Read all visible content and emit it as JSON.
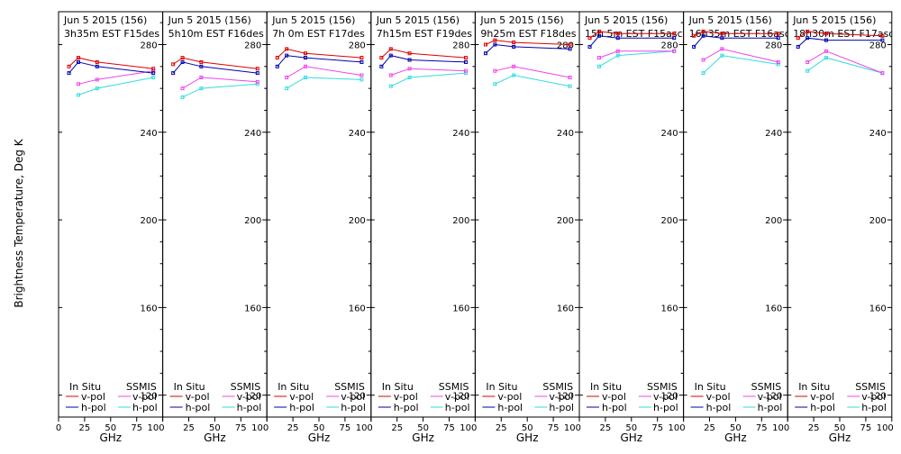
{
  "chart_data": {
    "type": "line",
    "ylabel": "Brightness Temperature, Deg K",
    "xlabel": "GHz",
    "ylim": [
      110,
      295
    ],
    "yticks": [
      120,
      160,
      200,
      240,
      280
    ],
    "xlim": [
      0,
      100
    ],
    "xticks": [
      0,
      25,
      50,
      75,
      100
    ],
    "xtick_labels_panel": [
      "25",
      "50",
      "75",
      "100"
    ],
    "xtick_labels_first": [
      "0",
      "25",
      "50",
      "75",
      "100"
    ],
    "legend": {
      "insitu_header": "In Situ",
      "ssmis_header": "SSMIS",
      "vpol": "v-pol",
      "hpol": "h-pol"
    },
    "colors": {
      "insitu_v": "#dd0000",
      "insitu_h": "#0000aa",
      "ssmis_v": "#ee44ee",
      "ssmis_h": "#33dddd"
    },
    "panels": [
      {
        "title1": "Jun 5 2015 (156)",
        "title2": "3h35m EST F15des",
        "insitu_v": {
          "x": [
            10,
            19,
            37,
            91
          ],
          "y": [
            270,
            274,
            272,
            269
          ]
        },
        "insitu_h": {
          "x": [
            10,
            19,
            37,
            91
          ],
          "y": [
            267,
            272,
            270,
            267
          ]
        },
        "ssmis_v": {
          "x": [
            19,
            37,
            91
          ],
          "y": [
            262,
            264,
            268
          ]
        },
        "ssmis_h": {
          "x": [
            19,
            37,
            91
          ],
          "y": [
            257,
            260,
            265
          ]
        }
      },
      {
        "title1": "Jun 5 2015 (156)",
        "title2": "5h10m EST F16des",
        "insitu_v": {
          "x": [
            10,
            19,
            37,
            91
          ],
          "y": [
            271,
            274,
            272,
            269
          ]
        },
        "insitu_h": {
          "x": [
            10,
            19,
            37,
            91
          ],
          "y": [
            267,
            272,
            270,
            267
          ]
        },
        "ssmis_v": {
          "x": [
            19,
            37,
            91
          ],
          "y": [
            260,
            265,
            263
          ]
        },
        "ssmis_h": {
          "x": [
            19,
            37,
            91
          ],
          "y": [
            256,
            260,
            262
          ]
        }
      },
      {
        "title1": "Jun 5 2015 (156)",
        "title2": "7h 0m EST F17des",
        "insitu_v": {
          "x": [
            10,
            19,
            37,
            91
          ],
          "y": [
            274,
            278,
            276,
            274
          ]
        },
        "insitu_h": {
          "x": [
            10,
            19,
            37,
            91
          ],
          "y": [
            270,
            275,
            274,
            272
          ]
        },
        "ssmis_v": {
          "x": [
            19,
            37,
            91
          ],
          "y": [
            265,
            270,
            266
          ]
        },
        "ssmis_h": {
          "x": [
            19,
            37,
            91
          ],
          "y": [
            260,
            265,
            264
          ]
        }
      },
      {
        "title1": "Jun 5 2015 (156)",
        "title2": "7h15m EST F19des",
        "insitu_v": {
          "x": [
            10,
            19,
            37,
            91
          ],
          "y": [
            274,
            278,
            276,
            274
          ]
        },
        "insitu_h": {
          "x": [
            10,
            19,
            37,
            91
          ],
          "y": [
            270,
            275,
            273,
            272
          ]
        },
        "ssmis_v": {
          "x": [
            19,
            37,
            91
          ],
          "y": [
            266,
            269,
            268
          ]
        },
        "ssmis_h": {
          "x": [
            19,
            37,
            91
          ],
          "y": [
            261,
            265,
            267
          ]
        }
      },
      {
        "title1": "Jun 5 2015 (156)",
        "title2": "9h25m EST F18des",
        "insitu_v": {
          "x": [
            10,
            19,
            37,
            91
          ],
          "y": [
            280,
            282,
            281,
            280
          ]
        },
        "insitu_h": {
          "x": [
            10,
            19,
            37,
            91
          ],
          "y": [
            276,
            280,
            279,
            278
          ]
        },
        "ssmis_v": {
          "x": [
            19,
            37,
            91
          ],
          "y": [
            268,
            270,
            265
          ]
        },
        "ssmis_h": {
          "x": [
            19,
            37,
            91
          ],
          "y": [
            262,
            266,
            261
          ]
        }
      },
      {
        "title1": "Jun 5 2015 (156)",
        "title2": "15h 5m EST F15asc",
        "insitu_v": {
          "x": [
            10,
            19,
            37,
            91
          ],
          "y": [
            283,
            286,
            285,
            285
          ]
        },
        "insitu_h": {
          "x": [
            10,
            19,
            37,
            91
          ],
          "y": [
            279,
            284,
            283,
            283
          ]
        },
        "ssmis_v": {
          "x": [
            19,
            37,
            91
          ],
          "y": [
            274,
            277,
            277
          ]
        },
        "ssmis_h": {
          "x": [
            19,
            37,
            91
          ],
          "y": [
            270,
            275,
            277
          ]
        }
      },
      {
        "title1": "Jun 5 2015 (156)",
        "title2": "16h35m EST F16asc",
        "insitu_v": {
          "x": [
            10,
            19,
            37,
            91
          ],
          "y": [
            284,
            286,
            285,
            285
          ]
        },
        "insitu_h": {
          "x": [
            10,
            19,
            37,
            91
          ],
          "y": [
            279,
            284,
            283,
            283
          ]
        },
        "ssmis_v": {
          "x": [
            19,
            37,
            91
          ],
          "y": [
            273,
            278,
            272
          ]
        },
        "ssmis_h": {
          "x": [
            19,
            37,
            91
          ],
          "y": [
            267,
            275,
            271
          ]
        }
      },
      {
        "title1": "Jun 5 2015 (156)",
        "title2": "18h30m EST F17asc",
        "insitu_v": {
          "x": [
            10,
            19,
            37,
            91
          ],
          "y": [
            283,
            286,
            285,
            284
          ]
        },
        "insitu_h": {
          "x": [
            10,
            19,
            37,
            91
          ],
          "y": [
            279,
            283,
            282,
            282
          ]
        },
        "ssmis_v": {
          "x": [
            19,
            37,
            91
          ],
          "y": [
            272,
            277,
            267
          ]
        },
        "ssmis_h": {
          "x": [
            19,
            37,
            91
          ],
          "y": [
            268,
            274,
            267
          ]
        }
      }
    ]
  }
}
